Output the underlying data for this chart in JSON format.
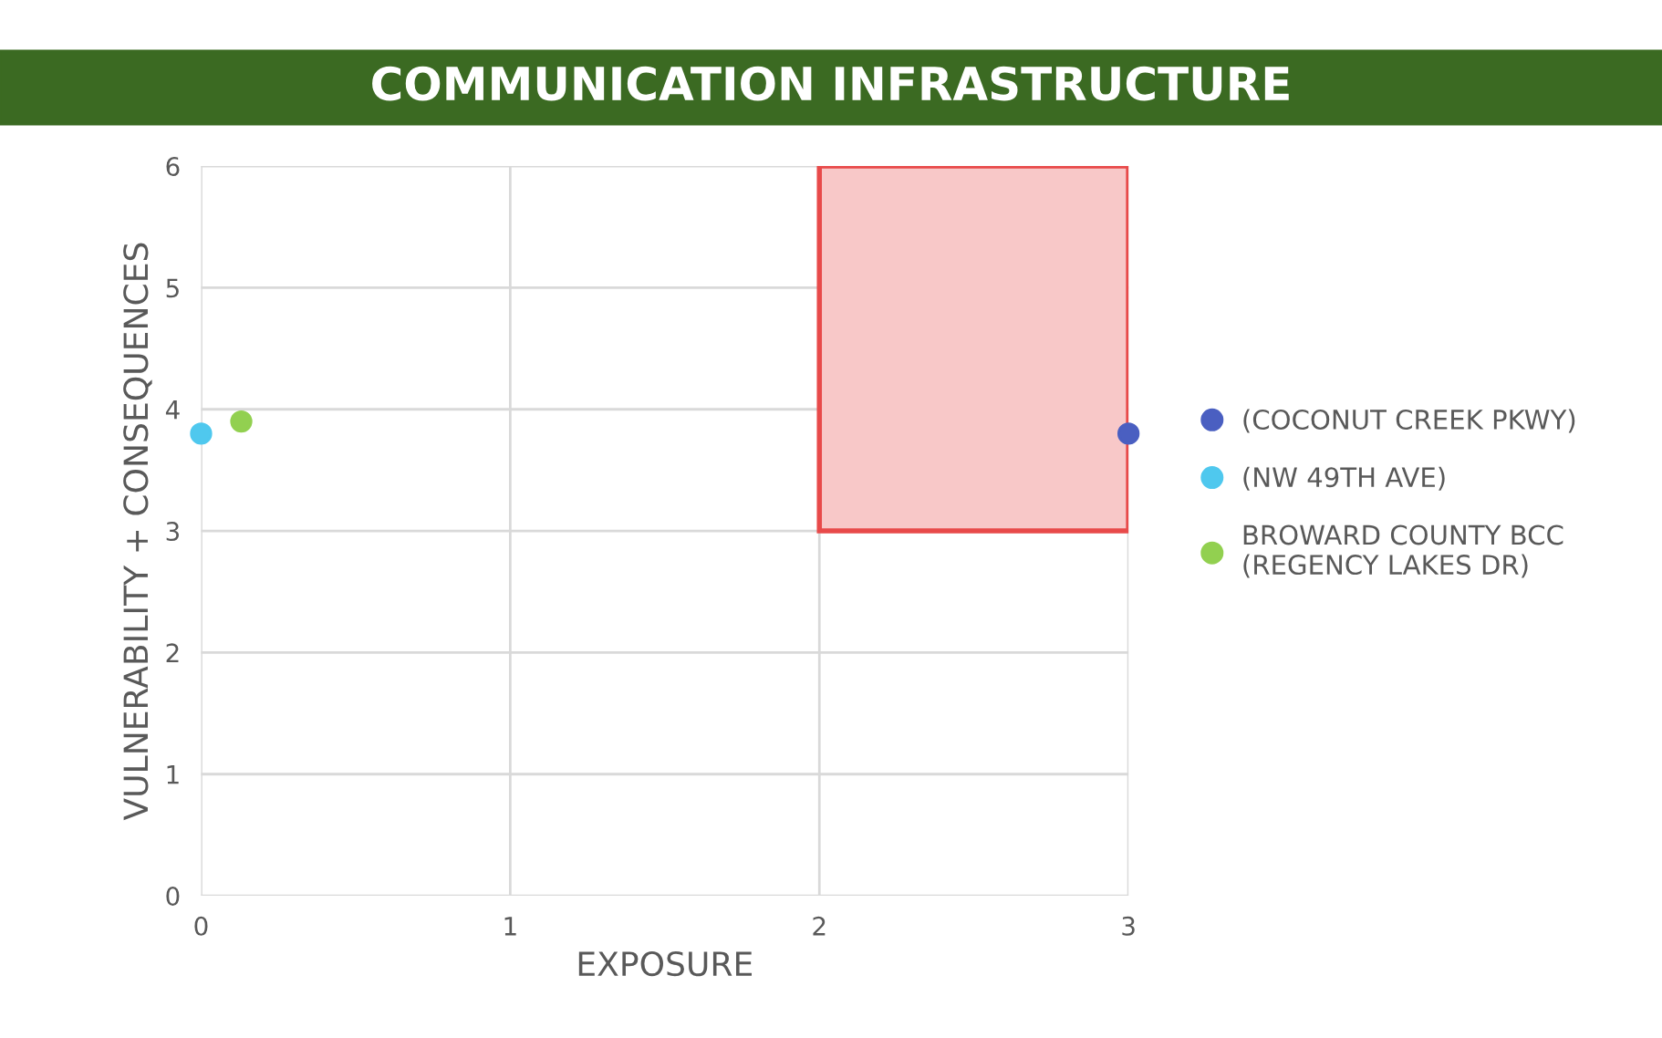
{
  "chart_data": {
    "type": "scatter",
    "title": "COMMUNICATION INFRASTRUCTURE",
    "xlabel": "EXPOSURE",
    "ylabel": "VULNERABILITY + CONSEQUENCES",
    "xlim": [
      0,
      3
    ],
    "ylim": [
      0,
      6
    ],
    "xticks": [
      0,
      1,
      2,
      3
    ],
    "yticks": [
      0,
      1,
      2,
      3,
      4,
      5,
      6
    ],
    "grid": true,
    "legend": "right",
    "marker": "circle",
    "series": [
      {
        "type": "bar",
        "color": "#f8c8c8",
        "x": [
          2.5
        ],
        "values": [
          3
        ],
        "base": [
          3
        ]
      },
      {
        "name": "(COCONUT CREEK PKWY)",
        "color": "#4a5fc1",
        "x": [
          3
        ],
        "values": [
          3.8
        ]
      },
      {
        "name": "(NW 49TH AVE)",
        "color": "#4fc8ee",
        "x": [
          0
        ],
        "values": [
          3.8
        ]
      },
      {
        "name": "BROWARD COUNTY BCC (REGENCY LAKES DR)",
        "color": "#92d050",
        "x": [
          0.13
        ],
        "values": [
          3.9
        ]
      }
    ]
  }
}
